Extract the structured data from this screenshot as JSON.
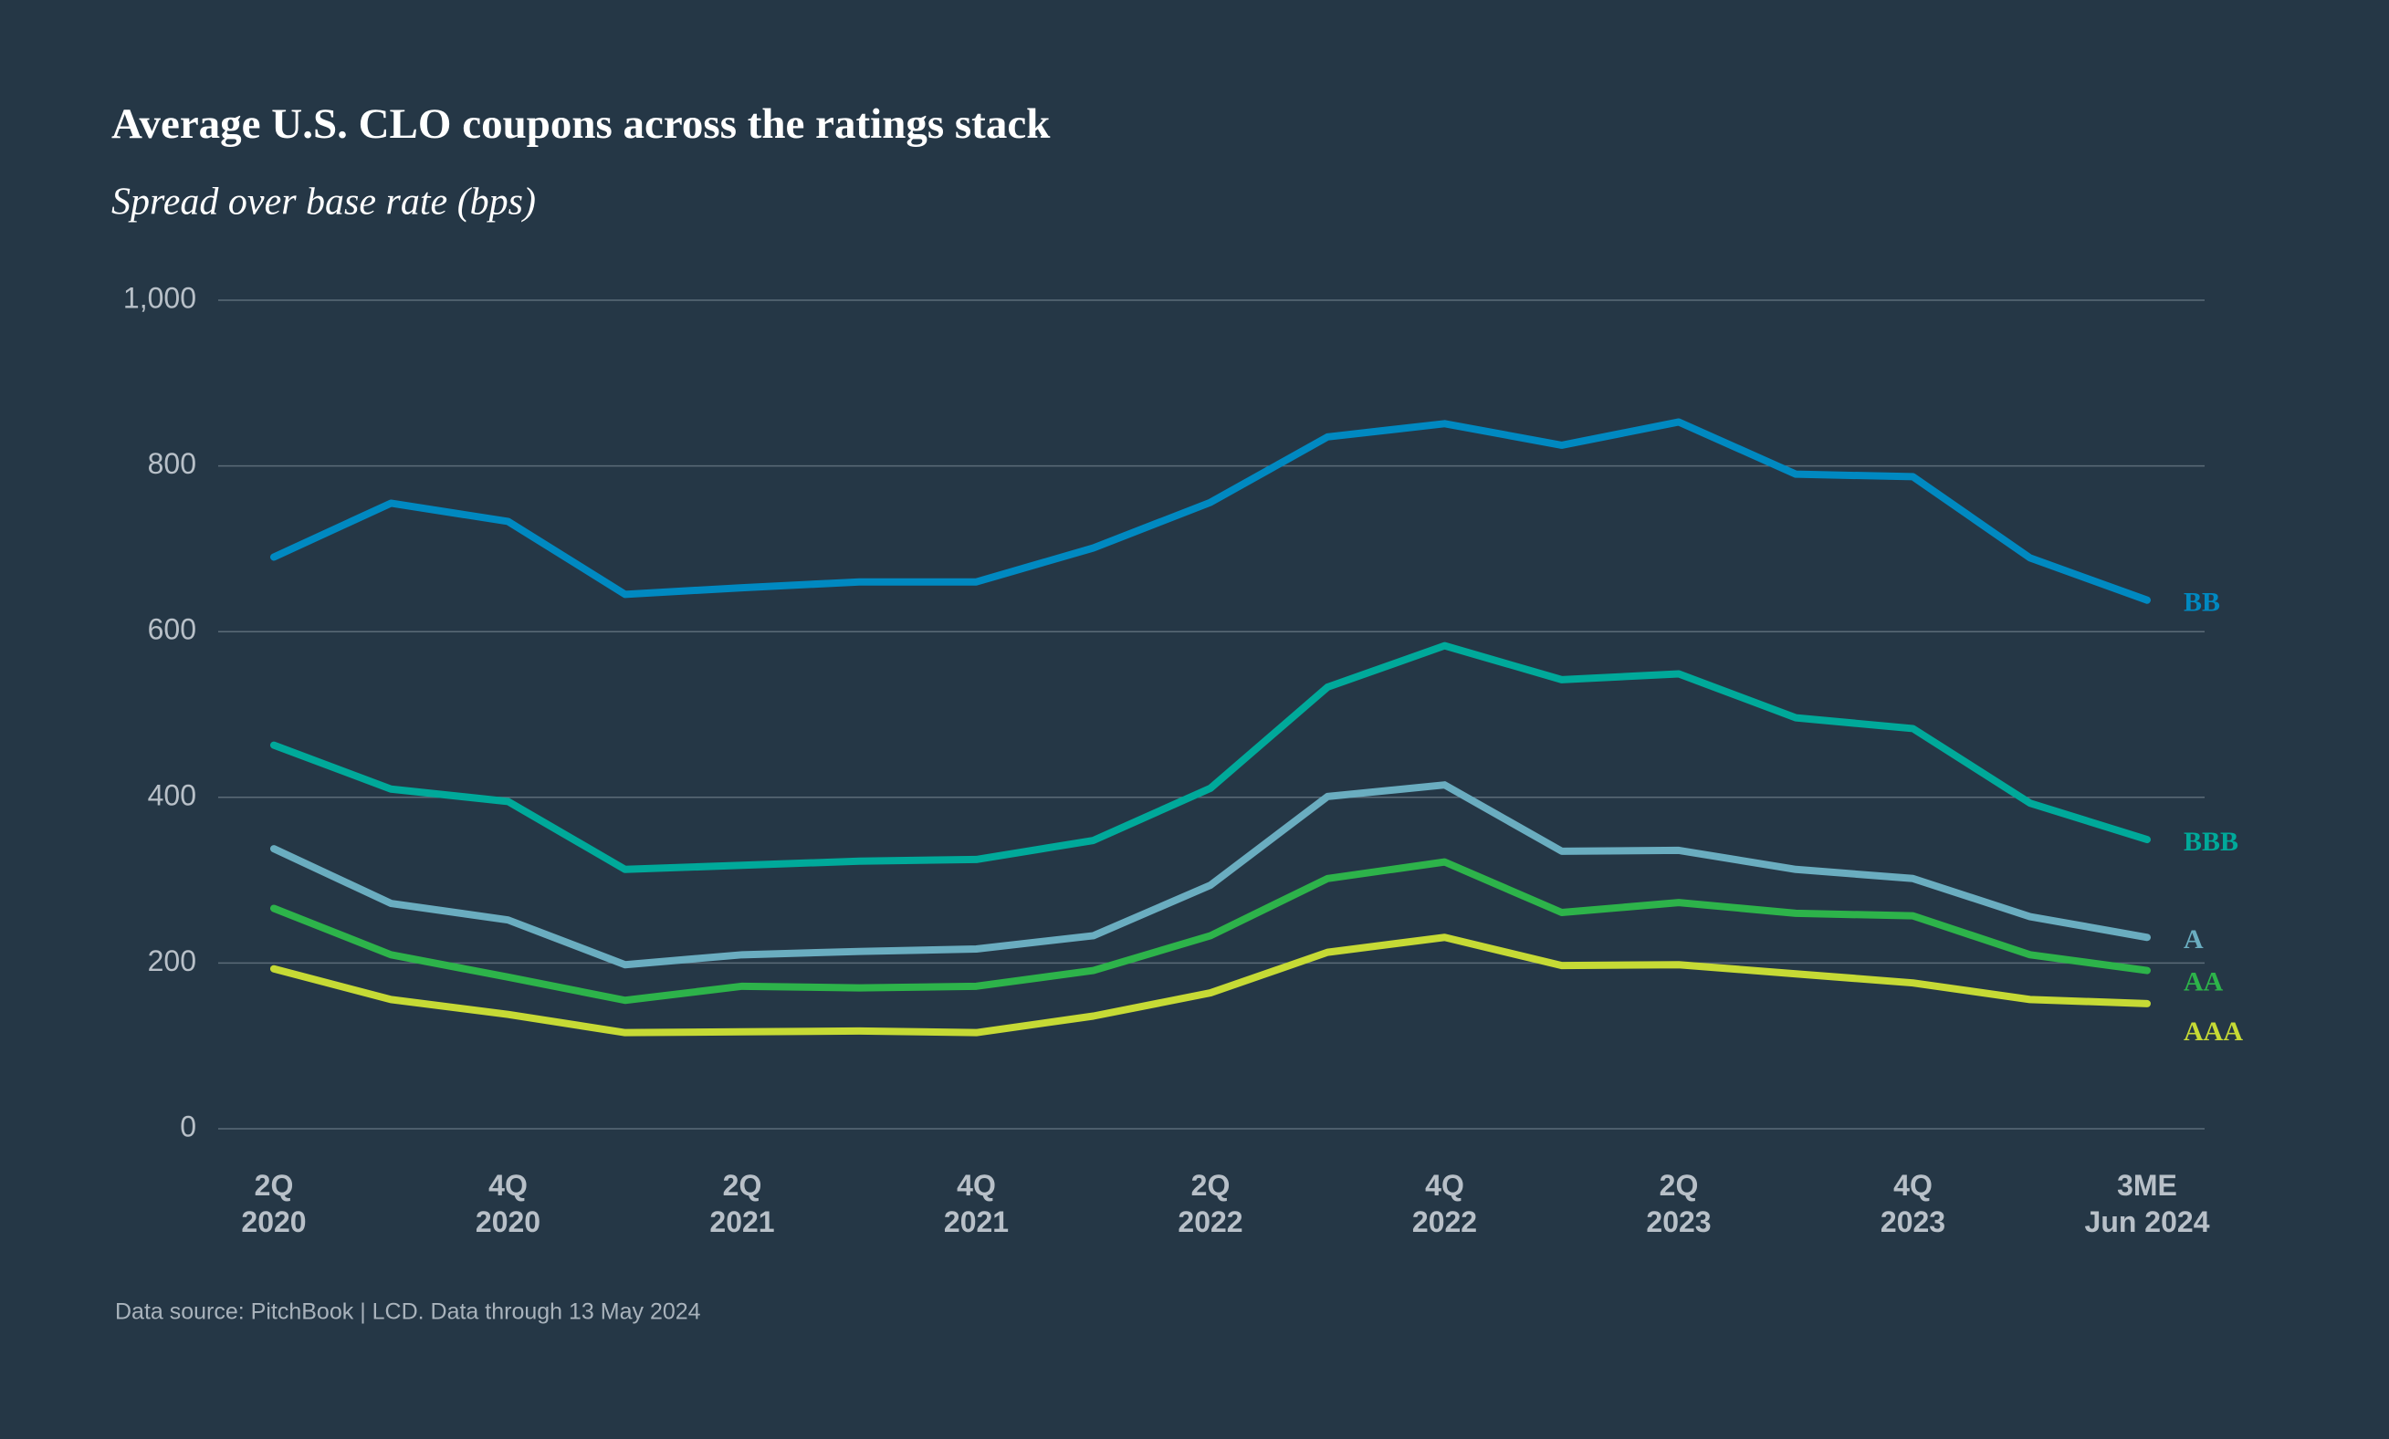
{
  "chart_data": {
    "type": "line",
    "title": "Average U.S. CLO coupons across the ratings stack",
    "subtitle": "Spread over base rate (bps)",
    "source": "Data source: PitchBook | LCD. Data through 13 May 2024",
    "categories": [
      [
        "2Q",
        "2020"
      ],
      null,
      [
        "4Q",
        "2020"
      ],
      null,
      [
        "2Q",
        "2021"
      ],
      null,
      [
        "4Q",
        "2021"
      ],
      null,
      [
        "2Q",
        "2022"
      ],
      null,
      [
        "4Q",
        "2022"
      ],
      null,
      [
        "2Q",
        "2023"
      ],
      null,
      [
        "4Q",
        "2023"
      ],
      null,
      [
        "3ME",
        "Jun 2024"
      ]
    ],
    "ylim": [
      0,
      1000
    ],
    "yticks": [
      0,
      200,
      400,
      600,
      800,
      {
        "value": 1000,
        "label": "1,000"
      }
    ],
    "grid": true,
    "series": [
      {
        "name": "BB",
        "color": "#0089c1",
        "values": [
          690,
          755,
          733,
          645,
          653,
          660,
          660,
          701,
          756,
          835,
          851,
          825,
          853,
          790,
          787,
          689,
          638
        ]
      },
      {
        "name": "BBB",
        "color": "#00a99a",
        "values": [
          463,
          410,
          395,
          313,
          318,
          323,
          325,
          348,
          411,
          533,
          583,
          542,
          549,
          496,
          483,
          393,
          349
        ]
      },
      {
        "name": "A",
        "color": "#6aadc0",
        "values": [
          338,
          272,
          252,
          198,
          210,
          214,
          217,
          233,
          294,
          401,
          415,
          335,
          336,
          313,
          302,
          256,
          231
        ]
      },
      {
        "name": "AA",
        "color": "#2db34a",
        "values": [
          266,
          210,
          183,
          155,
          172,
          170,
          172,
          191,
          233,
          302,
          322,
          261,
          273,
          260,
          257,
          210,
          191
        ]
      },
      {
        "name": "AAA",
        "color": "#c6da35",
        "values": [
          193,
          156,
          138,
          116,
          117,
          118,
          116,
          136,
          164,
          213,
          231,
          197,
          198,
          187,
          176,
          156,
          151
        ]
      }
    ]
  }
}
